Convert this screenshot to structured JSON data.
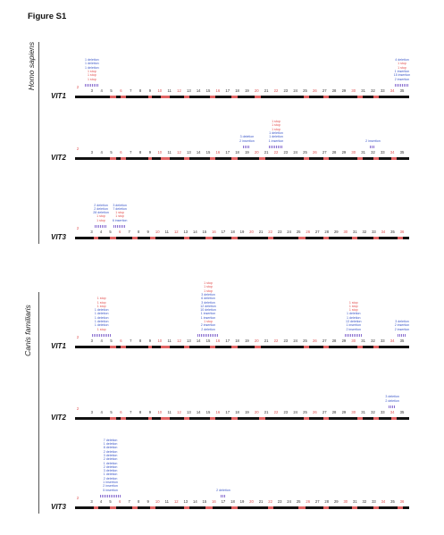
{
  "figure": {
    "title": "Figure S1"
  },
  "panels": [
    {
      "species": "Homo sapiens",
      "genes": [
        {
          "name": "VIT1",
          "exons": [
            "2",
            "3",
            "4",
            "5",
            "6",
            "7",
            "8",
            "9",
            "10",
            "11",
            "12",
            "13",
            "14",
            "15",
            "16",
            "17",
            "18",
            "19",
            "20",
            "21",
            "22",
            "23",
            "24",
            "25",
            "26",
            "27",
            "28",
            "29",
            "30",
            "31",
            "32",
            "33",
            "34",
            "35"
          ],
          "annotations": [
            {
              "exon": "3",
              "lines": [
                [
                  "blue",
                  "1 deletion"
                ],
                [
                  "blue",
                  "1 deletion"
                ],
                [
                  "blue",
                  "1 deletion"
                ],
                [
                  "red",
                  "1 stop"
                ],
                [
                  "red",
                  "1 stop"
                ],
                [
                  "red",
                  "1 stop"
                ]
              ]
            },
            {
              "exon": "35",
              "lines": [
                [
                  "blue",
                  "4 deletion"
                ],
                [
                  "red",
                  "1 stop"
                ],
                [
                  "red",
                  "1 stop"
                ],
                [
                  "blue",
                  "1 insertion"
                ],
                [
                  "blue",
                  "15 insertion"
                ],
                [
                  "blue",
                  "2 insertion"
                ]
              ]
            }
          ]
        },
        {
          "name": "VIT2",
          "exons": [
            "2",
            "3",
            "4",
            "5",
            "6",
            "7",
            "8",
            "9",
            "10",
            "11",
            "12",
            "13",
            "14",
            "15",
            "16",
            "17",
            "18",
            "19",
            "20",
            "21",
            "22",
            "23",
            "24",
            "25",
            "26",
            "27",
            "28",
            "29",
            "30",
            "31",
            "32",
            "33",
            "34",
            "35"
          ],
          "annotations": [
            {
              "exon": "19",
              "lines": [
                [
                  "blue",
                  "3 deletion"
                ],
                [
                  "blue",
                  "2 insertion"
                ]
              ]
            },
            {
              "exon": "22",
              "lines": [
                [
                  "red",
                  "1 stop"
                ],
                [
                  "red",
                  "1 stop"
                ],
                [
                  "red",
                  "1 stop"
                ],
                [
                  "blue",
                  "1 deletion"
                ],
                [
                  "blue",
                  "1 deletion"
                ],
                [
                  "blue",
                  "1 insertion"
                ]
              ]
            },
            {
              "exon": "32",
              "lines": [
                [
                  "blue",
                  "2 insertion"
                ]
              ]
            }
          ]
        },
        {
          "name": "VIT3",
          "exons": [
            "2",
            "3",
            "4",
            "5",
            "6",
            "7",
            "8",
            "9",
            "10",
            "11",
            "12",
            "13",
            "14",
            "15",
            "16",
            "17",
            "18",
            "19",
            "20",
            "21",
            "22",
            "23",
            "24",
            "25",
            "26",
            "27",
            "28",
            "29",
            "30",
            "31",
            "32",
            "33",
            "34",
            "35",
            "36"
          ],
          "annotations": [
            {
              "exon": "4",
              "lines": [
                [
                  "blue",
                  "2 deletion"
                ],
                [
                  "blue",
                  "2 deletion"
                ],
                [
                  "blue",
                  "28 deletion"
                ],
                [
                  "red",
                  "1 stop"
                ],
                [
                  "red",
                  "1 stop"
                ]
              ]
            },
            {
              "exon": "6",
              "lines": [
                [
                  "blue",
                  "3 deletion"
                ],
                [
                  "blue",
                  "7 deletion"
                ],
                [
                  "red",
                  "1 stop"
                ],
                [
                  "red",
                  "1 stop"
                ],
                [
                  "blue",
                  "6 insertion"
                ]
              ]
            }
          ]
        }
      ]
    },
    {
      "species": "Canis familiaris",
      "genes": [
        {
          "name": "VIT1",
          "exons": [
            "2",
            "3",
            "4",
            "5",
            "6",
            "7",
            "8",
            "9",
            "10",
            "11",
            "12",
            "13",
            "14",
            "15",
            "16",
            "17",
            "18",
            "19",
            "20",
            "21",
            "22",
            "23",
            "24",
            "25",
            "26",
            "27",
            "28",
            "29",
            "30",
            "31",
            "32",
            "33",
            "34",
            "35"
          ],
          "annotations": [
            {
              "exon": "4",
              "lines": [
                [
                  "red",
                  "1 stop"
                ],
                [
                  "red",
                  "1 stop"
                ],
                [
                  "red",
                  "1 stop"
                ],
                [
                  "blue",
                  "1 deletion"
                ],
                [
                  "blue",
                  "1 deletion"
                ],
                [
                  "blue",
                  "1 deletion"
                ],
                [
                  "blue",
                  "1 deletion"
                ],
                [
                  "blue",
                  "1 deletion"
                ],
                [
                  "red",
                  "1 stop"
                ]
              ]
            },
            {
              "exon": "15",
              "lines": [
                [
                  "red",
                  "1 stop"
                ],
                [
                  "red",
                  "1 stop"
                ],
                [
                  "red",
                  "1 stop"
                ],
                [
                  "blue",
                  "3 deletion"
                ],
                [
                  "blue",
                  "6 deletion"
                ],
                [
                  "blue",
                  "3 deletion"
                ],
                [
                  "blue",
                  "12 deletion"
                ],
                [
                  "blue",
                  "10 deletion"
                ],
                [
                  "blue",
                  "1 insertion"
                ],
                [
                  "blue",
                  "1 insertion"
                ],
                [
                  "red",
                  "1 stop"
                ],
                [
                  "blue",
                  "2 insertion"
                ],
                [
                  "blue",
                  "2 deletion"
                ]
              ]
            },
            {
              "exon": "30",
              "lines": [
                [
                  "red",
                  "1 stop"
                ],
                [
                  "red",
                  "1 stop"
                ],
                [
                  "red",
                  "1 stop"
                ],
                [
                  "blue",
                  "1 deletion"
                ],
                [
                  "blue",
                  "1 deletion"
                ],
                [
                  "blue",
                  "13 deletion"
                ],
                [
                  "blue",
                  "1 insertion"
                ],
                [
                  "blue",
                  "2 insertion"
                ]
              ]
            },
            {
              "exon": "35",
              "lines": [
                [
                  "blue",
                  "3 deletion"
                ],
                [
                  "blue",
                  "2 insertion"
                ],
                [
                  "blue",
                  "2 insertion"
                ]
              ]
            }
          ]
        },
        {
          "name": "VIT2",
          "exons": [
            "2",
            "3",
            "4",
            "5",
            "6",
            "7",
            "8",
            "9",
            "10",
            "11",
            "12",
            "13",
            "14",
            "15",
            "16",
            "17",
            "18",
            "19",
            "20",
            "21",
            "22",
            "23",
            "24",
            "25",
            "26",
            "27",
            "28",
            "29",
            "30",
            "31",
            "32",
            "33",
            "34",
            "35"
          ],
          "annotations": [
            {
              "exon": "34",
              "lines": [
                [
                  "blue",
                  "3 deletion"
                ],
                [
                  "blue",
                  "2 deletion"
                ]
              ]
            }
          ]
        },
        {
          "name": "VIT3",
          "exons": [
            "2",
            "3",
            "4",
            "5",
            "6",
            "7",
            "8",
            "9",
            "10",
            "11",
            "12",
            "13",
            "14",
            "15",
            "16",
            "17",
            "18",
            "19",
            "20",
            "21",
            "22",
            "23",
            "24",
            "25",
            "26",
            "27",
            "28",
            "29",
            "30",
            "31",
            "32",
            "33",
            "34",
            "35",
            "36"
          ],
          "annotations": [
            {
              "exon": "5",
              "lines": [
                [
                  "blue",
                  "7 deletion"
                ],
                [
                  "blue",
                  "1 deletion"
                ],
                [
                  "blue",
                  "8 deletion"
                ],
                [
                  "blue",
                  "2 deletion"
                ],
                [
                  "blue",
                  "3 deletion"
                ],
                [
                  "blue",
                  "2 deletion"
                ],
                [
                  "blue",
                  "1 deletion"
                ],
                [
                  "blue",
                  "2 deletion"
                ],
                [
                  "blue",
                  "3 deletion"
                ],
                [
                  "blue",
                  "1 deletion"
                ],
                [
                  "blue",
                  "2 deletion"
                ],
                [
                  "blue",
                  "1 insertion"
                ],
                [
                  "blue",
                  "2 insertion"
                ],
                [
                  "blue",
                  "5 insertion"
                ]
              ]
            },
            {
              "exon": "17",
              "lines": [
                [
                  "blue",
                  "2 deletion"
                ]
              ]
            }
          ]
        }
      ]
    }
  ]
}
